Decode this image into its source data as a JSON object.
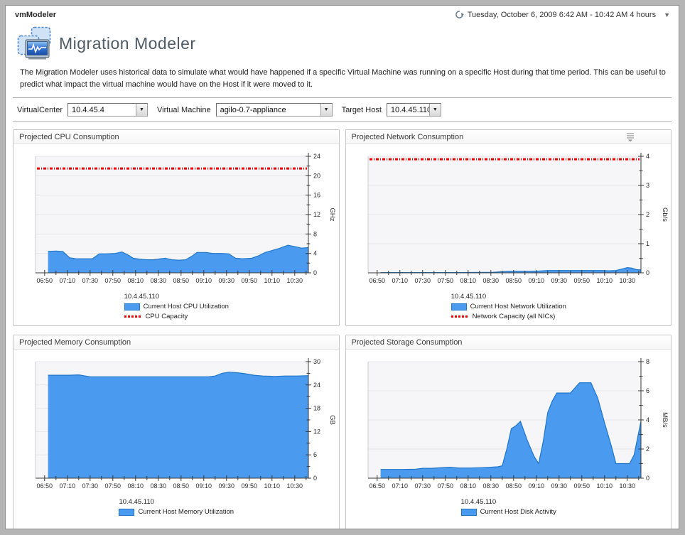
{
  "titlebar": {
    "app_name": "vmModeler",
    "daterange": "Tuesday, October 6, 2009 6:42 AM - 10:42 AM 4 hours"
  },
  "header": {
    "title": "Migration Modeler",
    "description": "The Migration Modeler uses historical data to simulate what would have happened if a specific Virtual Machine was running on a specific Host during that time period. This can be useful to predict what impact the virtual machine would have on the Host if it were moved to it."
  },
  "filters": {
    "virtualcenter_label": "VirtualCenter",
    "virtualcenter_value": "10.4.45.4",
    "vm_label": "Virtual Machine",
    "vm_value": "agilo-0.7-appliance",
    "target_label": "Target Host",
    "target_value": "10.4.45.110"
  },
  "colors": {
    "series_fill": "#4a9af0",
    "series_stroke": "#1f76c8",
    "capacity": "#e80000",
    "plot_bg": "#f6f6f8",
    "grid": "#e6e6ea",
    "axis": "#3a3a3a"
  },
  "chart_data": [
    {
      "type": "area",
      "panel_title": "Projected CPU Consumption",
      "ylabel": "GHz",
      "ylim": [
        0,
        24
      ],
      "y_major": 4,
      "y_minor": 2,
      "x_domain": [
        0,
        240
      ],
      "x_tick_labels": [
        "06:50",
        "07:10",
        "07:30",
        "07:50",
        "08:10",
        "08:30",
        "08:50",
        "09:10",
        "09:30",
        "09:50",
        "10:10",
        "10:30"
      ],
      "legend_host": "10.4.45.110",
      "series": [
        {
          "name": "Current Host CPU Utilization",
          "points": [
            [
              11,
              4.4
            ],
            [
              18,
              4.5
            ],
            [
              24,
              4.4
            ],
            [
              30,
              3.1
            ],
            [
              36,
              2.9
            ],
            [
              44,
              2.9
            ],
            [
              50,
              2.9
            ],
            [
              56,
              3.9
            ],
            [
              62,
              3.9
            ],
            [
              70,
              4.0
            ],
            [
              76,
              4.3
            ],
            [
              82,
              3.6
            ],
            [
              86,
              3.0
            ],
            [
              92,
              2.8
            ],
            [
              98,
              2.7
            ],
            [
              104,
              2.7
            ],
            [
              110,
              2.9
            ],
            [
              114,
              3.0
            ],
            [
              120,
              2.7
            ],
            [
              126,
              2.6
            ],
            [
              132,
              2.7
            ],
            [
              138,
              3.5
            ],
            [
              142,
              4.2
            ],
            [
              150,
              4.2
            ],
            [
              156,
              4.0
            ],
            [
              164,
              4.0
            ],
            [
              170,
              3.9
            ],
            [
              176,
              3.0
            ],
            [
              182,
              2.9
            ],
            [
              190,
              3.0
            ],
            [
              196,
              3.5
            ],
            [
              202,
              4.2
            ],
            [
              208,
              4.6
            ],
            [
              214,
              5.0
            ],
            [
              222,
              5.7
            ],
            [
              228,
              5.4
            ],
            [
              234,
              5.1
            ],
            [
              240,
              5.2
            ]
          ]
        }
      ],
      "capacity": {
        "label": "CPU Capacity",
        "value": 21.5
      },
      "has_menu_icon": false
    },
    {
      "type": "area",
      "panel_title": "Projected Network Consumption",
      "ylabel": "Gb/s",
      "ylim": [
        0,
        4
      ],
      "y_major": 1,
      "y_minor": 0.5,
      "x_domain": [
        0,
        240
      ],
      "x_tick_labels": [
        "06:50",
        "07:10",
        "07:30",
        "07:50",
        "08:10",
        "08:30",
        "08:50",
        "09:10",
        "09:30",
        "09:50",
        "10:10",
        "10:30"
      ],
      "legend_host": "10.4.45.110",
      "series": [
        {
          "name": "Current Host Network Utilization",
          "points": [
            [
              11,
              0.01
            ],
            [
              40,
              0.01
            ],
            [
              80,
              0.01
            ],
            [
              110,
              0.02
            ],
            [
              118,
              0.04
            ],
            [
              126,
              0.05
            ],
            [
              134,
              0.05
            ],
            [
              142,
              0.05
            ],
            [
              150,
              0.06
            ],
            [
              158,
              0.08
            ],
            [
              166,
              0.08
            ],
            [
              180,
              0.08
            ],
            [
              195,
              0.08
            ],
            [
              205,
              0.08
            ],
            [
              212,
              0.07
            ],
            [
              218,
              0.08
            ],
            [
              224,
              0.14
            ],
            [
              228,
              0.18
            ],
            [
              232,
              0.16
            ],
            [
              236,
              0.11
            ],
            [
              240,
              0.1
            ]
          ]
        }
      ],
      "capacity": {
        "label": "Network Capacity (all NICs)",
        "value": 3.9
      },
      "has_menu_icon": true
    },
    {
      "type": "area",
      "panel_title": "Projected Memory Consumption",
      "ylabel": "GB",
      "ylim": [
        0,
        30
      ],
      "y_major": 6,
      "y_minor": 3,
      "x_domain": [
        0,
        240
      ],
      "x_tick_labels": [
        "06:50",
        "07:10",
        "07:30",
        "07:50",
        "08:10",
        "08:30",
        "08:50",
        "09:10",
        "09:30",
        "09:50",
        "10:10",
        "10:30"
      ],
      "legend_host": "10.4.45.110",
      "series": [
        {
          "name": "Current Host Memory Utilization",
          "points": [
            [
              11,
              26.5
            ],
            [
              20,
              26.5
            ],
            [
              30,
              26.5
            ],
            [
              38,
              26.6
            ],
            [
              42,
              26.4
            ],
            [
              48,
              26.1
            ],
            [
              60,
              26.1
            ],
            [
              80,
              26.1
            ],
            [
              100,
              26.1
            ],
            [
              120,
              26.1
            ],
            [
              140,
              26.1
            ],
            [
              152,
              26.1
            ],
            [
              158,
              26.3
            ],
            [
              164,
              27.0
            ],
            [
              170,
              27.3
            ],
            [
              176,
              27.2
            ],
            [
              184,
              26.9
            ],
            [
              192,
              26.5
            ],
            [
              200,
              26.3
            ],
            [
              210,
              26.2
            ],
            [
              220,
              26.3
            ],
            [
              230,
              26.3
            ],
            [
              240,
              26.4
            ]
          ]
        }
      ],
      "capacity": null,
      "has_menu_icon": false
    },
    {
      "type": "area",
      "panel_title": "Projected Storage Consumption",
      "ylabel": "MB/s",
      "ylim": [
        0,
        8
      ],
      "y_major": 2,
      "y_minor": 1,
      "x_domain": [
        0,
        240
      ],
      "x_tick_labels": [
        "06:50",
        "07:10",
        "07:30",
        "07:50",
        "08:10",
        "08:30",
        "08:50",
        "09:10",
        "09:30",
        "09:50",
        "10:10",
        "10:30"
      ],
      "legend_host": "10.4.45.110",
      "series": [
        {
          "name": "Current Host Disk Activity",
          "points": [
            [
              11,
              0.6
            ],
            [
              30,
              0.6
            ],
            [
              42,
              0.62
            ],
            [
              48,
              0.68
            ],
            [
              56,
              0.68
            ],
            [
              64,
              0.72
            ],
            [
              72,
              0.75
            ],
            [
              80,
              0.7
            ],
            [
              90,
              0.7
            ],
            [
              100,
              0.72
            ],
            [
              108,
              0.75
            ],
            [
              114,
              0.78
            ],
            [
              118,
              0.85
            ],
            [
              122,
              2.0
            ],
            [
              126,
              3.4
            ],
            [
              130,
              3.6
            ],
            [
              134,
              3.9
            ],
            [
              140,
              2.6
            ],
            [
              146,
              1.5
            ],
            [
              150,
              1.0
            ],
            [
              154,
              2.5
            ],
            [
              158,
              4.5
            ],
            [
              162,
              5.3
            ],
            [
              166,
              5.85
            ],
            [
              172,
              5.85
            ],
            [
              178,
              5.85
            ],
            [
              182,
              6.2
            ],
            [
              186,
              6.55
            ],
            [
              192,
              6.55
            ],
            [
              196,
              6.55
            ],
            [
              202,
              5.5
            ],
            [
              208,
              3.8
            ],
            [
              214,
              2.2
            ],
            [
              218,
              1.0
            ],
            [
              224,
              1.0
            ],
            [
              230,
              1.0
            ],
            [
              234,
              1.6
            ],
            [
              240,
              3.9
            ]
          ]
        }
      ],
      "capacity": null,
      "has_menu_icon": false
    }
  ]
}
